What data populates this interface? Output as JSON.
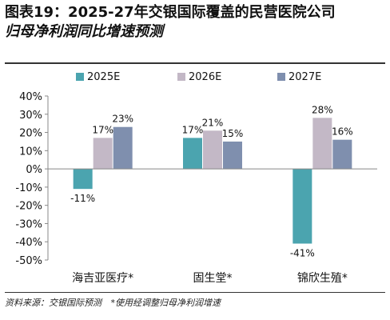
{
  "title": {
    "line1": "图表19：2025-27年交银国际覆盖的民营医院公司",
    "line2": "归母净利润同比增速预测"
  },
  "footer": {
    "source": "资料来源：交银国际预测",
    "note": "*使用经调整归母净利润增速"
  },
  "colors": {
    "s2025": "#4BA4AF",
    "s2026": "#C3B8C6",
    "s2027": "#7F8FAE",
    "axis": "#888888"
  },
  "chart_data": {
    "type": "bar",
    "categories": [
      "海吉亚医疗*",
      "固生堂*",
      "锦欣生殖*"
    ],
    "series": [
      {
        "name": "2025E",
        "values": [
          -11,
          17,
          -41
        ],
        "labels": [
          "-11%",
          "17%",
          "-41%"
        ]
      },
      {
        "name": "2026E",
        "values": [
          17,
          21,
          28
        ],
        "labels": [
          "17%",
          "21%",
          "28%"
        ]
      },
      {
        "name": "2027E",
        "values": [
          23,
          15,
          16
        ],
        "labels": [
          "23%",
          "15%",
          "16%"
        ]
      }
    ],
    "ylim": [
      -50,
      40
    ],
    "yticks": [
      40,
      30,
      20,
      10,
      0,
      -10,
      -20,
      -30,
      -40,
      -50
    ],
    "ytick_labels": [
      "40%",
      "30%",
      "20%",
      "10%",
      "0%",
      "-10%",
      "-20%",
      "-30%",
      "-40%",
      "-50%"
    ],
    "legend_position": "top",
    "grid": false
  }
}
